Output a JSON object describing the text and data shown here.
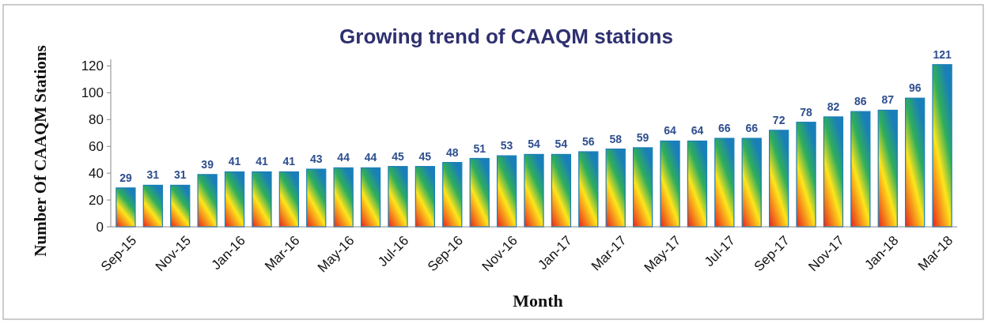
{
  "chart_data": {
    "type": "bar",
    "title": "Growing  trend of CAAQM stations",
    "xlabel": "Month",
    "ylabel": "Number Of CAAQM Stations",
    "categories": [
      "Sep-15",
      null,
      "Nov-15",
      null,
      "Jan-16",
      null,
      "Mar-16",
      null,
      "May-16",
      null,
      "Jul-16",
      null,
      "Sep-16",
      null,
      "Nov-16",
      null,
      "Jan-17",
      null,
      "Mar-17",
      null,
      "May-17",
      null,
      "Jul-17",
      null,
      "Sep-17",
      null,
      "Nov-17",
      null,
      "Jan-18",
      null,
      "Mar-18"
    ],
    "values": [
      29,
      31,
      31,
      39,
      41,
      41,
      41,
      43,
      44,
      44,
      45,
      45,
      48,
      51,
      53,
      54,
      54,
      56,
      58,
      59,
      64,
      64,
      66,
      66,
      72,
      78,
      82,
      86,
      87,
      96,
      121
    ],
    "color": "#1a7fb8",
    "ylim": [
      0,
      125
    ],
    "yticks": [
      0,
      20,
      40,
      60,
      80,
      100,
      120
    ],
    "grid": false,
    "data_labels": true
  }
}
